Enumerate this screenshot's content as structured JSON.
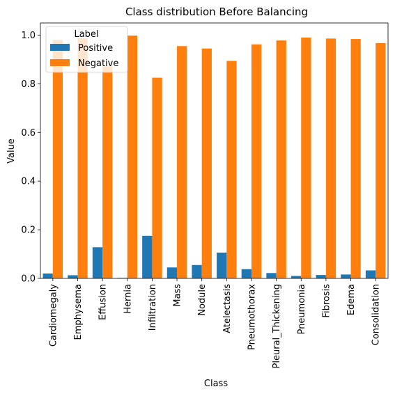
{
  "chart_data": {
    "type": "bar",
    "title": "Class distribution Before Balancing",
    "xlabel": "Class",
    "ylabel": "Value",
    "ylim": [
      0,
      1.05
    ],
    "yticks": [
      "0.0",
      "0.2",
      "0.4",
      "0.6",
      "0.8",
      "1.0"
    ],
    "grid": false,
    "legend": {
      "title": "Label",
      "placement": "upper-left"
    },
    "categories": [
      "Cardiomegaly",
      "Emphysema",
      "Effusion",
      "Hernia",
      "Infiltration",
      "Mass",
      "Nodule",
      "Atelectasis",
      "Pneumothorax",
      "Pleural_Thickening",
      "Pneumonia",
      "Fibrosis",
      "Edema",
      "Consolidation"
    ],
    "series": [
      {
        "name": "Positive",
        "color": "#1f77b4",
        "values": [
          0.02,
          0.013,
          0.128,
          0.002,
          0.175,
          0.045,
          0.055,
          0.106,
          0.038,
          0.022,
          0.01,
          0.014,
          0.016,
          0.033
        ]
      },
      {
        "name": "Negative",
        "color": "#ff7f0e",
        "values": [
          0.98,
          0.987,
          0.872,
          0.998,
          0.825,
          0.955,
          0.945,
          0.894,
          0.962,
          0.978,
          0.99,
          0.986,
          0.984,
          0.967
        ]
      }
    ]
  }
}
